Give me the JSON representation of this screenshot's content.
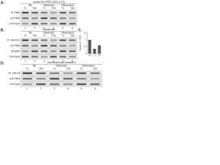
{
  "panels": [
    {
      "label": "A.",
      "header": "mouse Pin1 PPIE (1B01 (C13)",
      "groups": [
        "TBI",
        "TRIM14K0",
        "TRIM14K0/2"
      ],
      "treatments": [
        "T1",
        "T2D",
        "T1",
        "T2D",
        "T1",
        "T2D"
      ],
      "rows": [
        "IP: TRIM",
        "pS-TRIM",
        "10% Input"
      ],
      "lanes": [
        "1",
        "2",
        "3",
        "4",
        "5",
        "6"
      ]
    },
    {
      "label": "B.",
      "header": "Transfection",
      "groups": [
        "TBI",
        "TRIM14K0",
        "TRIM14K0/2"
      ],
      "treatments": [
        "T1",
        "T2D",
        "T1",
        "T2D",
        "T1",
        "T2D"
      ],
      "rows": [
        "IP: anti-Pin1",
        "pS-TRIM",
        "Ubiquitin",
        "10% Input"
      ],
      "lanes": [
        "1",
        "2",
        "3",
        "4",
        "5",
        "6"
      ]
    },
    {
      "label": "D.",
      "header": "Transfection and Treatment",
      "groups": [
        "TBI",
        "TRIM14K0",
        "TRIM14K0/2"
      ],
      "treatments": [
        "T1",
        "T2D",
        "T1",
        "T2D",
        "T1",
        "T2D"
      ],
      "rows": [
        "IP: anti-HA",
        "anti-TRIM",
        "10% Input"
      ],
      "lanes": [
        "1",
        "2",
        "3",
        "4",
        "5",
        "6"
      ]
    }
  ],
  "chart_c": {
    "label": "C.",
    "type": "bar",
    "ylabel": "Relative pS-TRIM",
    "categories": [
      "Ctrl",
      "T1",
      "T2D"
    ],
    "values": [
      1,
      0.35,
      0.6
    ],
    "color": "#555555",
    "ylim": [
      0,
      1.5
    ],
    "yticks": [
      0,
      0.5,
      1,
      1.5
    ]
  }
}
